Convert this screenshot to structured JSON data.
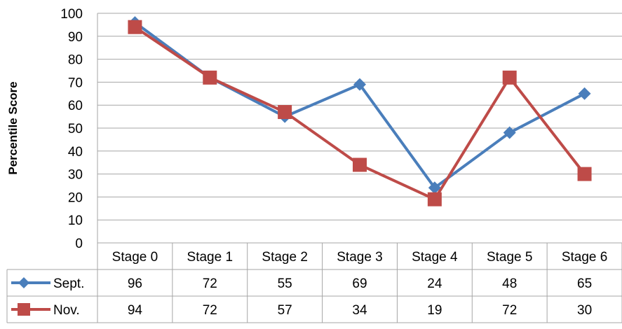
{
  "chart_data": {
    "type": "line",
    "title": "",
    "xlabel": "",
    "ylabel": "Percentile Score",
    "ylim": [
      0,
      100
    ],
    "yticks": [
      0,
      10,
      20,
      30,
      40,
      50,
      60,
      70,
      80,
      90,
      100
    ],
    "grid": true,
    "legend": "data-table-left",
    "categories": [
      "Stage 0",
      "Stage 1",
      "Stage 2",
      "Stage 3",
      "Stage 4",
      "Stage 5",
      "Stage 6"
    ],
    "series": [
      {
        "name": "Sept.",
        "values": [
          96,
          72,
          55,
          69,
          24,
          48,
          65
        ],
        "color": "#4A7EBB",
        "marker": "diamond"
      },
      {
        "name": "Nov.",
        "values": [
          94,
          72,
          57,
          34,
          19,
          72,
          30
        ],
        "color": "#BE4B48",
        "marker": "square"
      }
    ]
  }
}
